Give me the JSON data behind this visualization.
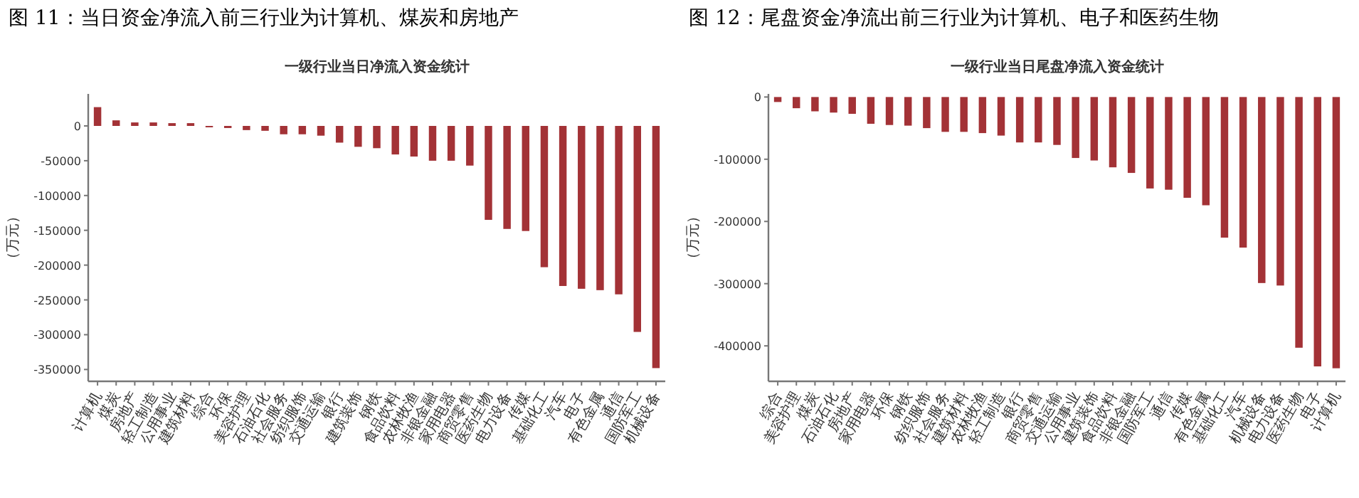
{
  "chart_data": [
    {
      "type": "bar",
      "title": "图 11：当日资金净流入前三行业为计算机、煤炭和房地产",
      "subtitle": "一级行业当日净流入资金统计",
      "ylabel": "（万元）",
      "categories": [
        "计算机",
        "煤炭",
        "房地产",
        "轻工制造",
        "公用事业",
        "建筑材料",
        "综合",
        "环保",
        "美容护理",
        "石油石化",
        "社会服务",
        "纺织服饰",
        "交通运输",
        "银行",
        "建筑装饰",
        "钢铁",
        "食品饮料",
        "农林牧渔",
        "非银金融",
        "家用电器",
        "商贸零售",
        "医药生物",
        "电力设备",
        "传媒",
        "基础化工",
        "汽车",
        "电子",
        "有色金属",
        "通信",
        "国防军工",
        "机械设备"
      ],
      "series": [
        {
          "color": "#a33236",
          "values": [
            27000,
            8000,
            5000,
            5000,
            4000,
            4000,
            -2000,
            -3000,
            -6000,
            -7000,
            -12000,
            -12000,
            -14000,
            -24000,
            -30000,
            -32000,
            -41000,
            -44000,
            -50000,
            -50000,
            -57000,
            -135000,
            -148000,
            -151000,
            -203000,
            -230000,
            -234000,
            -236000,
            -242000,
            -296000,
            -348000
          ]
        }
      ],
      "ylim": [
        -367000,
        46000
      ],
      "yticks": [
        0,
        -50000,
        -100000,
        -150000,
        -200000,
        -250000,
        -300000,
        -350000
      ],
      "grid": false
    },
    {
      "type": "bar",
      "title": "图 12：尾盘资金净流出前三行业为计算机、电子和医药生物",
      "subtitle": "一级行业当日尾盘净流入资金统计",
      "ylabel": "（万元）",
      "categories": [
        "综合",
        "美容护理",
        "煤炭",
        "石油石化",
        "房地产",
        "家用电器",
        "环保",
        "钢铁",
        "纺织服饰",
        "社会服务",
        "建筑材料",
        "农林牧渔",
        "轻工制造",
        "银行",
        "商贸零售",
        "交通运输",
        "公用事业",
        "建筑装饰",
        "食品饮料",
        "非银金融",
        "国防军工",
        "通信",
        "传媒",
        "有色金属",
        "基础化工",
        "汽车",
        "机械设备",
        "电力设备",
        "医药生物",
        "电子",
        "计算机"
      ],
      "series": [
        {
          "color": "#a33236",
          "values": [
            -8000,
            -18000,
            -23000,
            -25000,
            -27000,
            -43000,
            -45000,
            -46000,
            -50000,
            -56000,
            -56000,
            -58000,
            -62000,
            -73000,
            -73000,
            -77000,
            -98000,
            -102000,
            -113000,
            -122000,
            -147000,
            -149000,
            -162000,
            -174000,
            -226000,
            -242000,
            -299000,
            -303000,
            -403000,
            -433000,
            -436000
          ]
        }
      ],
      "ylim": [
        -457000,
        5000
      ],
      "yticks": [
        0,
        -100000,
        -200000,
        -300000,
        -400000
      ],
      "grid": false
    }
  ]
}
